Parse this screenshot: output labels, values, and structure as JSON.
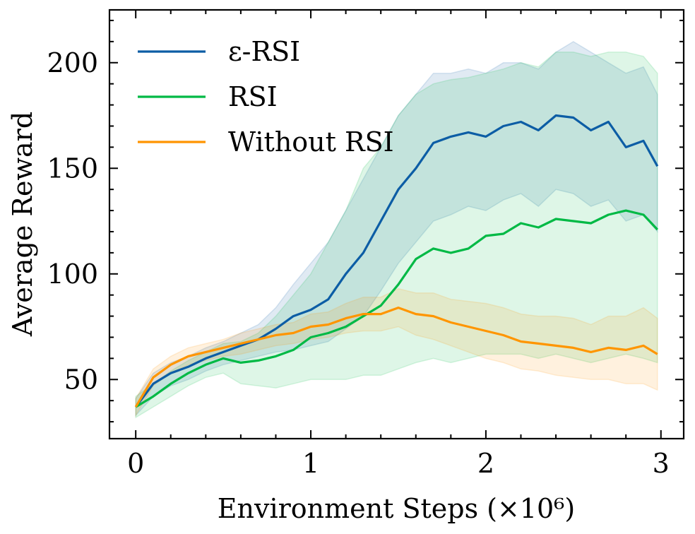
{
  "chart_data": {
    "type": "line",
    "title": "",
    "xlabel": "Environment Steps (×10⁶)",
    "ylabel": "Average Reward",
    "xlim": [
      -0.15,
      3.13
    ],
    "ylim": [
      22,
      225
    ],
    "xticks": [
      0,
      1,
      2,
      3
    ],
    "xtick_labels": [
      "0",
      "1",
      "2",
      "3"
    ],
    "yticks": [
      50,
      100,
      150,
      200
    ],
    "ytick_labels": [
      "50",
      "100",
      "150",
      "200"
    ],
    "grid": false,
    "legend_position": "top-left",
    "series": [
      {
        "name": "ε-RSI",
        "color": "#0C5DA5",
        "x": [
          0,
          0.1,
          0.2,
          0.3,
          0.4,
          0.5,
          0.6,
          0.7,
          0.8,
          0.9,
          1.0,
          1.1,
          1.2,
          1.3,
          1.4,
          1.5,
          1.6,
          1.7,
          1.8,
          1.9,
          2.0,
          2.1,
          2.2,
          2.3,
          2.4,
          2.5,
          2.6,
          2.7,
          2.8,
          2.9,
          2.98
        ],
        "y": [
          37,
          48,
          53,
          56,
          60,
          63,
          66,
          69,
          74,
          80,
          83,
          88,
          100,
          110,
          125,
          140,
          150,
          162,
          165,
          167,
          165,
          170,
          172,
          168,
          175,
          174,
          168,
          172,
          160,
          163,
          151
        ],
        "band_lower": [
          33,
          42,
          47,
          50,
          54,
          57,
          59,
          61,
          63,
          64,
          66,
          68,
          74,
          80,
          92,
          105,
          115,
          125,
          128,
          132,
          130,
          135,
          138,
          132,
          140,
          138,
          132,
          135,
          125,
          128,
          120
        ],
        "band_upper": [
          41,
          53,
          58,
          61,
          65,
          68,
          72,
          76,
          84,
          95,
          105,
          115,
          130,
          145,
          160,
          175,
          185,
          195,
          195,
          197,
          195,
          200,
          200,
          197,
          205,
          210,
          205,
          200,
          195,
          198,
          185
        ]
      },
      {
        "name": "RSI",
        "color": "#00B945",
        "x": [
          0,
          0.1,
          0.2,
          0.3,
          0.4,
          0.5,
          0.6,
          0.7,
          0.8,
          0.9,
          1.0,
          1.1,
          1.2,
          1.3,
          1.4,
          1.5,
          1.6,
          1.7,
          1.8,
          1.9,
          2.0,
          2.1,
          2.2,
          2.3,
          2.4,
          2.5,
          2.6,
          2.7,
          2.8,
          2.9,
          2.98
        ],
        "y": [
          37,
          42,
          48,
          53,
          57,
          60,
          58,
          59,
          61,
          64,
          70,
          72,
          75,
          80,
          85,
          95,
          107,
          112,
          110,
          112,
          118,
          119,
          124,
          122,
          126,
          125,
          124,
          128,
          130,
          128,
          121
        ],
        "band_lower": [
          32,
          37,
          42,
          47,
          51,
          53,
          48,
          47,
          46,
          48,
          50,
          50,
          50,
          52,
          52,
          55,
          58,
          60,
          58,
          60,
          62,
          62,
          62,
          60,
          62,
          60,
          58,
          60,
          62,
          60,
          58
        ],
        "band_upper": [
          42,
          48,
          54,
          59,
          63,
          67,
          68,
          72,
          80,
          90,
          100,
          115,
          130,
          150,
          160,
          175,
          185,
          190,
          192,
          193,
          195,
          197,
          200,
          198,
          205,
          205,
          203,
          205,
          205,
          203,
          195
        ]
      },
      {
        "name": "Without RSI",
        "color": "#FF9500",
        "x": [
          0,
          0.1,
          0.2,
          0.3,
          0.4,
          0.5,
          0.6,
          0.7,
          0.8,
          0.9,
          1.0,
          1.1,
          1.2,
          1.3,
          1.4,
          1.5,
          1.6,
          1.7,
          1.8,
          1.9,
          2.0,
          2.1,
          2.2,
          2.3,
          2.4,
          2.5,
          2.6,
          2.7,
          2.8,
          2.9,
          2.98
        ],
        "y": [
          37,
          51,
          57,
          61,
          63,
          65,
          67,
          69,
          71,
          72,
          75,
          76,
          79,
          81,
          81,
          84,
          81,
          80,
          77,
          75,
          73,
          71,
          68,
          67,
          66,
          65,
          63,
          65,
          64,
          66,
          62
        ],
        "band_lower": [
          33,
          47,
          53,
          57,
          59,
          61,
          62,
          64,
          66,
          67,
          69,
          70,
          72,
          73,
          73,
          75,
          71,
          69,
          66,
          63,
          60,
          58,
          55,
          54,
          52,
          51,
          50,
          50,
          48,
          48,
          45
        ],
        "band_upper": [
          41,
          55,
          61,
          65,
          67,
          69,
          72,
          74,
          76,
          77,
          81,
          82,
          86,
          89,
          89,
          93,
          91,
          91,
          88,
          87,
          86,
          84,
          81,
          80,
          80,
          79,
          76,
          80,
          80,
          84,
          79
        ]
      }
    ]
  }
}
